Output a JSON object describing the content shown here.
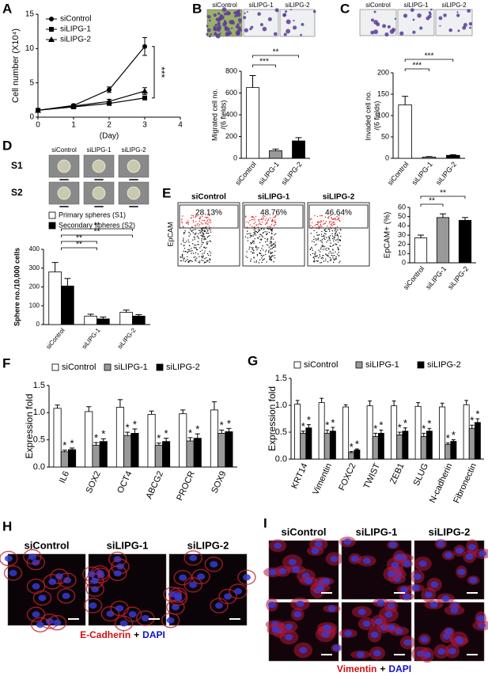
{
  "chart_data": [
    {
      "panel": "A",
      "type": "line",
      "ylabel": "Cell number (X10⁴)",
      "xlabel": "(Day)",
      "x": [
        0,
        1,
        2,
        3
      ],
      "series": [
        {
          "name": "siControl",
          "color": "#000000",
          "marker": "circle",
          "values": [
            1,
            1.7,
            4,
            10.3
          ],
          "errors": [
            0.1,
            0.2,
            0.4,
            1.3
          ]
        },
        {
          "name": "siLIPG-1",
          "color": "#000000",
          "marker": "square",
          "values": [
            1,
            1.5,
            2,
            2.8
          ],
          "errors": [
            0.1,
            0.1,
            0.2,
            0.2
          ]
        },
        {
          "name": "siLIPG-2",
          "color": "#000000",
          "marker": "triangle",
          "values": [
            1,
            1.6,
            2.3,
            3.8
          ],
          "errors": [
            0.1,
            0.1,
            0.3,
            0.5
          ]
        }
      ],
      "xlim": [
        0,
        4
      ],
      "xticks": [
        0,
        1,
        2,
        3,
        4
      ],
      "ylim": [
        0,
        15
      ],
      "yticks": [
        0,
        5,
        10,
        15
      ],
      "legend": "upper left",
      "significance": [
        "***"
      ]
    },
    {
      "panel": "B",
      "type": "bar",
      "ylabel": [
        "Migrated cell no.",
        "/(6 fields)"
      ],
      "categories": [
        "siControl",
        "siLIPG-1",
        "siLIPG-2"
      ],
      "values": [
        650,
        70,
        160
      ],
      "errors": [
        110,
        15,
        30
      ],
      "colors": [
        "#ffffff",
        "#999999",
        "#000000"
      ],
      "ylim": [
        0,
        800
      ],
      "yticks": [
        0,
        200,
        400,
        600,
        800
      ],
      "significance": [
        "**",
        "***"
      ]
    },
    {
      "panel": "C",
      "type": "bar",
      "ylabel": [
        "Invaded cell no.",
        "/(6 fields)"
      ],
      "categories": [
        "siControl",
        "siLIPG-1",
        "siLIPG-2"
      ],
      "values": [
        125,
        3,
        7
      ],
      "errors": [
        20,
        1,
        1.5
      ],
      "colors": [
        "#ffffff",
        "#999999",
        "#000000"
      ],
      "ylim": [
        0,
        200
      ],
      "yticks": [
        0,
        50,
        100,
        150,
        200
      ],
      "significance": [
        "***",
        "***"
      ]
    },
    {
      "panel": "D",
      "type": "bar",
      "ylabel": "Sphere no./10,000 cells",
      "categories": [
        "siControl",
        "siLIPG-1",
        "siLIPG-2"
      ],
      "series": [
        {
          "name": "Primary spheres (S1)",
          "color": "#ffffff",
          "values": [
            280,
            45,
            65
          ],
          "errors": [
            50,
            10,
            12
          ]
        },
        {
          "name": "Secondary spheres (S2)",
          "color": "#000000",
          "values": [
            205,
            30,
            45
          ],
          "errors": [
            40,
            10,
            8
          ]
        }
      ],
      "ylim": [
        0,
        400
      ],
      "yticks": [
        0,
        100,
        200,
        300,
        400
      ],
      "legend": "top",
      "significance": [
        "**",
        "**",
        "**",
        "**"
      ]
    },
    {
      "panel": "E",
      "type": "bar",
      "ylabel": "EpCAM+ (%)",
      "categories": [
        "siControl",
        "siLIPG-1",
        "siLIPG-2"
      ],
      "values": [
        27,
        49,
        46
      ],
      "errors": [
        3,
        4,
        3
      ],
      "colors": [
        "#ffffff",
        "#999999",
        "#000000"
      ],
      "ylim": [
        0,
        60
      ],
      "yticks": [
        0,
        10,
        20,
        30,
        40,
        50,
        60
      ],
      "significance": [
        "**",
        "**"
      ]
    },
    {
      "panel": "F",
      "type": "bar",
      "ylabel": "Expression fold",
      "categories": [
        "IL6",
        "SOX2",
        "OCT4",
        "ABCG2",
        "PROCR",
        "SOX9"
      ],
      "series": [
        {
          "name": "siControl",
          "color": "#ffffff",
          "values": [
            1.08,
            1.02,
            1.1,
            0.97,
            0.98,
            1.05
          ],
          "errors": [
            0.06,
            0.09,
            0.14,
            0.06,
            0.07,
            0.15
          ]
        },
        {
          "name": "siLIPG-1",
          "color": "#999999",
          "values": [
            0.28,
            0.4,
            0.58,
            0.4,
            0.48,
            0.62
          ],
          "errors": [
            0.03,
            0.05,
            0.06,
            0.04,
            0.06,
            0.06
          ]
        },
        {
          "name": "siLIPG-2",
          "color": "#000000",
          "values": [
            0.32,
            0.47,
            0.62,
            0.47,
            0.53,
            0.65
          ],
          "errors": [
            0.03,
            0.05,
            0.08,
            0.06,
            0.08,
            0.06
          ]
        }
      ],
      "ylim": [
        0,
        1.5
      ],
      "yticks": [
        {
          "value": 0,
          "label": "0.0"
        },
        {
          "value": 0.5,
          "label": "0.5"
        },
        {
          "value": 1,
          "label": "1.0"
        },
        {
          "value": 1.5,
          "label": "1.5"
        }
      ],
      "legend": "top",
      "annotation": "*"
    },
    {
      "panel": "G",
      "type": "bar",
      "ylabel": "Expression fold",
      "categories": [
        "KRT14",
        "Vimentin",
        "FOXC2",
        "TWIST",
        "ZEB1",
        "SLUG",
        "N-cadherin",
        "Fibronectin"
      ],
      "series": [
        {
          "name": "siControl",
          "color": "#ffffff",
          "values": [
            1.02,
            1.05,
            0.97,
            0.99,
            0.99,
            0.98,
            0.97,
            1.01
          ],
          "errors": [
            0.07,
            0.08,
            0.04,
            0.09,
            0.09,
            0.07,
            0.07,
            0.08
          ]
        },
        {
          "name": "siLIPG-1",
          "color": "#999999",
          "values": [
            0.48,
            0.48,
            0.12,
            0.42,
            0.45,
            0.42,
            0.27,
            0.57
          ],
          "errors": [
            0.04,
            0.06,
            0.02,
            0.06,
            0.05,
            0.06,
            0.03,
            0.06
          ]
        },
        {
          "name": "siLIPG-2",
          "color": "#000000",
          "values": [
            0.58,
            0.52,
            0.17,
            0.48,
            0.52,
            0.52,
            0.33,
            0.68
          ],
          "errors": [
            0.06,
            0.07,
            0.02,
            0.06,
            0.06,
            0.05,
            0.03,
            0.07
          ]
        }
      ],
      "ylim": [
        0,
        1.5
      ],
      "yticks": [
        {
          "value": 0,
          "label": "0.0"
        },
        {
          "value": 0.5,
          "label": "0.5"
        },
        {
          "value": 1,
          "label": "1.0"
        },
        {
          "value": 1.5,
          "label": "1.5"
        }
      ],
      "legend": "top",
      "annotation": "*"
    }
  ],
  "micrographs": {
    "B": {
      "columns": [
        "siControl",
        "siLIPG-1",
        "siLIPG-2"
      ]
    },
    "C": {
      "columns": [
        "siControl",
        "siLIPG-1",
        "siLIPG-2"
      ]
    },
    "D": {
      "columns": [
        "siControl",
        "siLIPG-1",
        "siLIPG-2"
      ],
      "rows": [
        "S1",
        "S2"
      ]
    },
    "E": {
      "columns": [
        "siControl",
        "siLIPG-1",
        "siLIPG-2"
      ],
      "gates": [
        "28.13%",
        "48.76%",
        "46.64%"
      ],
      "ylabel": "EpCAM"
    },
    "H": {
      "panel": "H",
      "columns": [
        "siControl",
        "siLIPG-1",
        "siLIPG-2"
      ],
      "stain": [
        "E-Cadherin",
        "+",
        "DAPI"
      ]
    },
    "I": {
      "panel": "I",
      "columns": [
        "siControl",
        "siLIPG-1",
        "siLIPG-2"
      ],
      "stain": [
        "Vimentin",
        "+",
        "DAPI"
      ]
    }
  }
}
